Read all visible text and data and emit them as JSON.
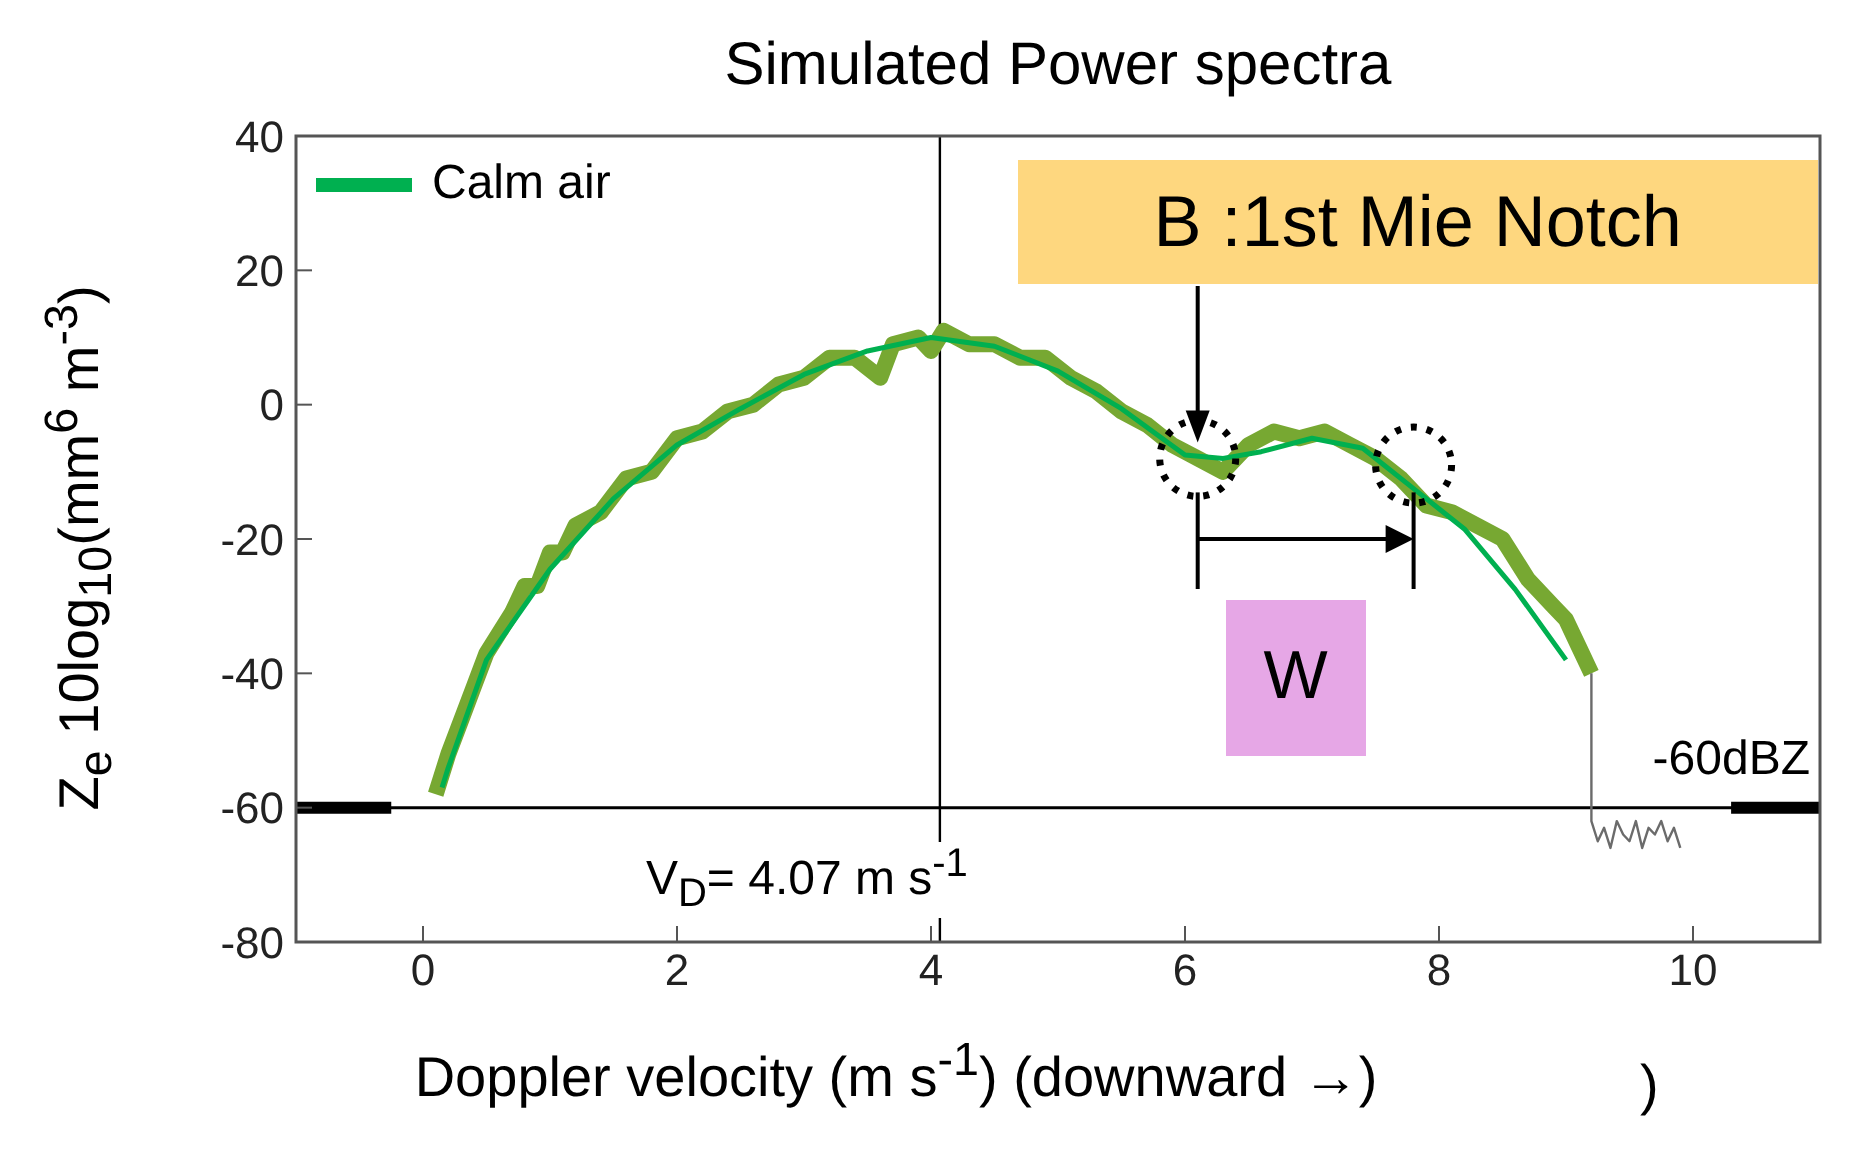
{
  "chart_data": {
    "type": "line",
    "title": "Simulated Power spectra",
    "xlabel": "Doppler velocity (m s$^{-1}$) (downward →)",
    "ylabel": "Z$_{e}$ 10log$_{10}$(mm$^{6}$ m$^{-3}$)",
    "xlim": [
      -1,
      11
    ],
    "ylim": [
      -80,
      40
    ],
    "xticks": [
      0,
      2,
      4,
      6,
      8,
      10
    ],
    "yticks": [
      -80,
      -60,
      -40,
      -20,
      0,
      20,
      40
    ],
    "legend": "top left",
    "marker": "none",
    "series": [
      {
        "color": "#77a832",
        "x": [
          0.1,
          0.2,
          0.3,
          0.4,
          0.5,
          0.6,
          0.7,
          0.8,
          0.9,
          1.0,
          1.1,
          1.2,
          1.4,
          1.6,
          1.8,
          2.0,
          2.2,
          2.4,
          2.6,
          2.8,
          3.0,
          3.2,
          3.4,
          3.6,
          3.7,
          3.9,
          4.0,
          4.1,
          4.3,
          4.5,
          4.7,
          4.9,
          5.1,
          5.3,
          5.5,
          5.7,
          5.9,
          6.1,
          6.3,
          6.5,
          6.7,
          6.9,
          7.1,
          7.3,
          7.5,
          7.7,
          7.9,
          8.1,
          8.3,
          8.5,
          8.7,
          8.9,
          9.0,
          9.1,
          9.2
        ],
        "values": [
          -58,
          -52,
          -47,
          -42,
          -37,
          -34,
          -31,
          -27,
          -27,
          -22,
          -22,
          -18,
          -16,
          -11,
          -10,
          -5,
          -4,
          -1,
          0,
          3,
          4,
          7,
          7,
          4,
          9,
          10,
          8,
          11,
          9,
          9,
          7,
          7,
          4,
          2,
          -1,
          -3,
          -6,
          -8,
          -10,
          -6,
          -4,
          -5,
          -4,
          -6,
          -8,
          -11,
          -15,
          -16,
          -18,
          -20,
          -26,
          -30,
          -32,
          -36,
          -40
        ]
      },
      {
        "name": "Calm air",
        "color": "#00b050",
        "x": [
          0.15,
          0.2,
          0.5,
          1.0,
          1.5,
          2.0,
          2.5,
          3.0,
          3.5,
          4.0,
          4.5,
          5.0,
          5.5,
          6.0,
          6.3,
          6.6,
          7.0,
          7.4,
          7.8,
          8.2,
          8.6,
          9.0
        ],
        "values": [
          -57,
          -54,
          -38,
          -24.5,
          -14,
          -6,
          -0.6,
          4.5,
          8,
          10,
          8.7,
          5,
          -0.6,
          -7.5,
          -8,
          -7,
          -5,
          -6.5,
          -12.5,
          -18.5,
          -27.5,
          -38
        ]
      },
      {
        "color": "#6b6b6b",
        "x": [
          9.2,
          9.2,
          9.25,
          9.3,
          9.35,
          9.4,
          9.45,
          9.5,
          9.55,
          9.6,
          9.65,
          9.7,
          9.75,
          9.8,
          9.85,
          9.9
        ],
        "values": [
          -40,
          -62,
          -65,
          -63,
          -66,
          -62,
          -64,
          -65,
          -62,
          -66,
          -63,
          -64,
          -62,
          -65,
          -63,
          -66
        ]
      },
      {
        "color": "#000000",
        "x": [
          -1,
          -0.25
        ],
        "values": [
          -60,
          -60
        ]
      },
      {
        "color": "#000000",
        "x": [
          10.3,
          11
        ],
        "values": [
          -60,
          -60
        ]
      }
    ],
    "ref_lines": [
      {
        "axis": "y",
        "value": -60,
        "label": "-60dBZ",
        "color": "#000000"
      },
      {
        "axis": "x",
        "value": 4.07,
        "label": "V$_{D}$= 4.07 m s$^{-1}$",
        "color": "#000000"
      }
    ],
    "annotations": [
      {
        "text": "B :1st Mie Notch",
        "x": 6.1,
        "y": -8
      },
      {
        "text": "W",
        "x": 7.8,
        "y": -9
      },
      ")"
    ]
  }
}
